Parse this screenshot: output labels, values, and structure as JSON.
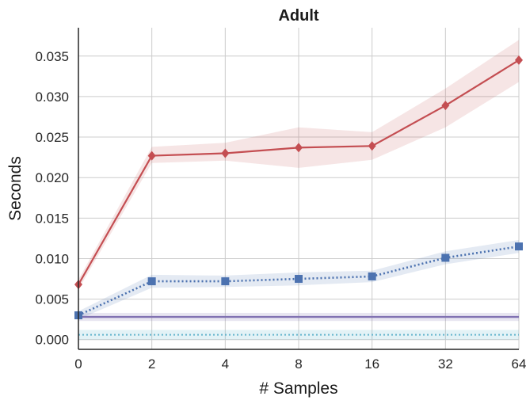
{
  "chart_data": {
    "type": "line",
    "title": "Adult",
    "xlabel": "# Samples",
    "ylabel": "Seconds",
    "categories": [
      "0",
      "2",
      "4",
      "8",
      "16",
      "32",
      "64"
    ],
    "ylim": [
      -0.0012,
      0.0385
    ],
    "yticks": [
      "0.000",
      "0.005",
      "0.010",
      "0.015",
      "0.020",
      "0.025",
      "0.030",
      "0.035"
    ],
    "ytick_values": [
      0,
      0.005,
      0.01,
      0.015,
      0.02,
      0.025,
      0.03,
      0.035
    ],
    "grid": true,
    "series": [
      {
        "name": "red-diamond-series",
        "color": "#c44e52",
        "marker": "diamond",
        "line": "solid",
        "values": [
          0.0068,
          0.0227,
          0.023,
          0.0237,
          0.0239,
          0.0289,
          0.0345
        ],
        "lower": [
          0.0062,
          0.0218,
          0.0221,
          0.0212,
          0.0222,
          0.0262,
          0.0318
        ],
        "upper": [
          0.0074,
          0.0238,
          0.0243,
          0.0262,
          0.0256,
          0.031,
          0.037
        ]
      },
      {
        "name": "blue-square-series",
        "color": "#4c72b0",
        "marker": "square",
        "line": "dotted",
        "values": [
          0.003,
          0.0072,
          0.0072,
          0.0075,
          0.0078,
          0.0101,
          0.0115
        ],
        "lower": [
          0.0025,
          0.0064,
          0.0065,
          0.0067,
          0.0071,
          0.0093,
          0.0107
        ],
        "upper": [
          0.0035,
          0.008,
          0.0079,
          0.0083,
          0.0085,
          0.0109,
          0.0123
        ]
      }
    ],
    "reference_lines": [
      {
        "name": "purple-constant-line",
        "color": "#8172b2",
        "style": "solid",
        "value": 0.0028,
        "band": [
          0.0023,
          0.0033
        ]
      },
      {
        "name": "cyan-constant-line",
        "color": "#64b5cd",
        "style": "dotted",
        "value": 0.0006,
        "band": [
          0.0,
          0.0012
        ]
      }
    ]
  }
}
